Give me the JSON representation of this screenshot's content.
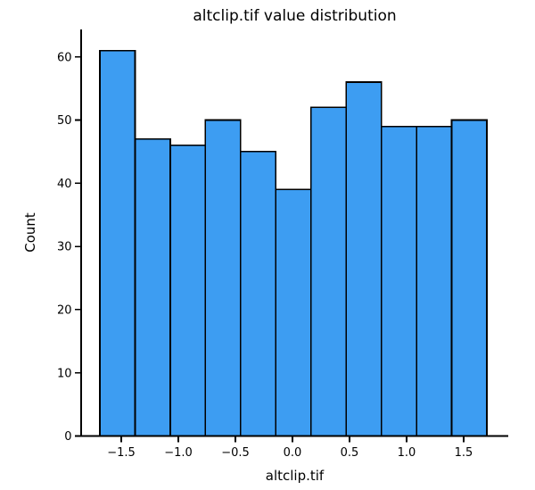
{
  "window": {
    "background": "#ffffff"
  },
  "chart_data": {
    "type": "bar",
    "subtype": "histogram",
    "title": "altclip.tif value distribution",
    "xlabel": "altclip.tif",
    "ylabel": "Count",
    "bin_edges": [
      -1.688,
      -1.379,
      -1.071,
      -0.763,
      -0.455,
      -0.146,
      0.162,
      0.47,
      0.778,
      1.087,
      1.395,
      1.703
    ],
    "counts": [
      61,
      47,
      46,
      50,
      45,
      39,
      52,
      56,
      49,
      49,
      50
    ],
    "x_ticks": {
      "values": [
        -1.5,
        -1.0,
        -0.5,
        0.0,
        0.5,
        1.0,
        1.5
      ],
      "labels": [
        "−1.5",
        "−1.0",
        "−0.5",
        "0.0",
        "0.5",
        "1.0",
        "1.5"
      ]
    },
    "y_ticks": {
      "values": [
        0,
        10,
        20,
        30,
        40,
        50,
        60
      ],
      "labels": [
        "0",
        "10",
        "20",
        "30",
        "40",
        "50",
        "60"
      ]
    },
    "xlim": [
      -1.852,
      1.891
    ],
    "ylim": [
      0,
      64.34
    ],
    "grid": false,
    "legend": "none",
    "colors": {
      "bar_fill": "#3D9DF2",
      "bar_edge": "#000000",
      "axis": "#000000",
      "text": "#000000"
    }
  }
}
